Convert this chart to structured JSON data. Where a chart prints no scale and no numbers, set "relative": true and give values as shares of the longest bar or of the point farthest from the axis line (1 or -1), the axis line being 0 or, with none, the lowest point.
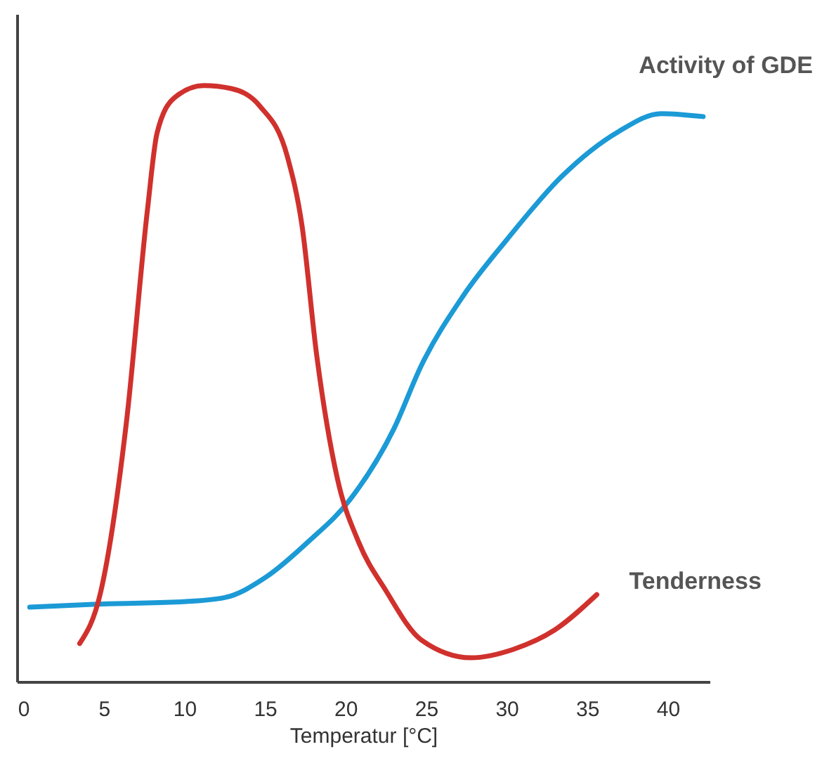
{
  "chart_data": {
    "type": "line",
    "relative": true,
    "xlabel": "Temperatur [°C]",
    "xlim": [
      -0.4,
      42.6
    ],
    "xticks": [
      0,
      5,
      10,
      15,
      20,
      25,
      30,
      35,
      40
    ],
    "grid": false,
    "legend": false,
    "marker": "none",
    "line_style": "solid",
    "series": [
      {
        "name": "Activity of GDE",
        "color": "#1b9ad6",
        "x": [
          0.4,
          4.6,
          9.9,
          12.5,
          15.1,
          17.7,
          20.3,
          23,
          24.7,
          27.3,
          30,
          33.4,
          36.9,
          39.6,
          42.2
        ],
        "values": [
          0.125,
          0.13,
          0.134,
          0.141,
          0.176,
          0.235,
          0.306,
          0.424,
          0.53,
          0.647,
          0.741,
          0.847,
          0.922,
          0.953,
          0.948
        ]
      },
      {
        "name": "Tenderness",
        "color": "#d0312d",
        "x": [
          3.5,
          4.8,
          6.4,
          7.7,
          8.3,
          9.4,
          11.2,
          12.9,
          14.7,
          16.4,
          17.3,
          18.2,
          19.5,
          20.8,
          22.5,
          24.7,
          27.8,
          30.4,
          33,
          35.6
        ],
        "values": [
          0.064,
          0.15,
          0.435,
          0.79,
          0.92,
          0.98,
          1,
          0.995,
          0.965,
          0.88,
          0.765,
          0.55,
          0.34,
          0.235,
          0.153,
          0.07,
          0.04,
          0.054,
          0.087,
          0.146
        ]
      }
    ]
  }
}
